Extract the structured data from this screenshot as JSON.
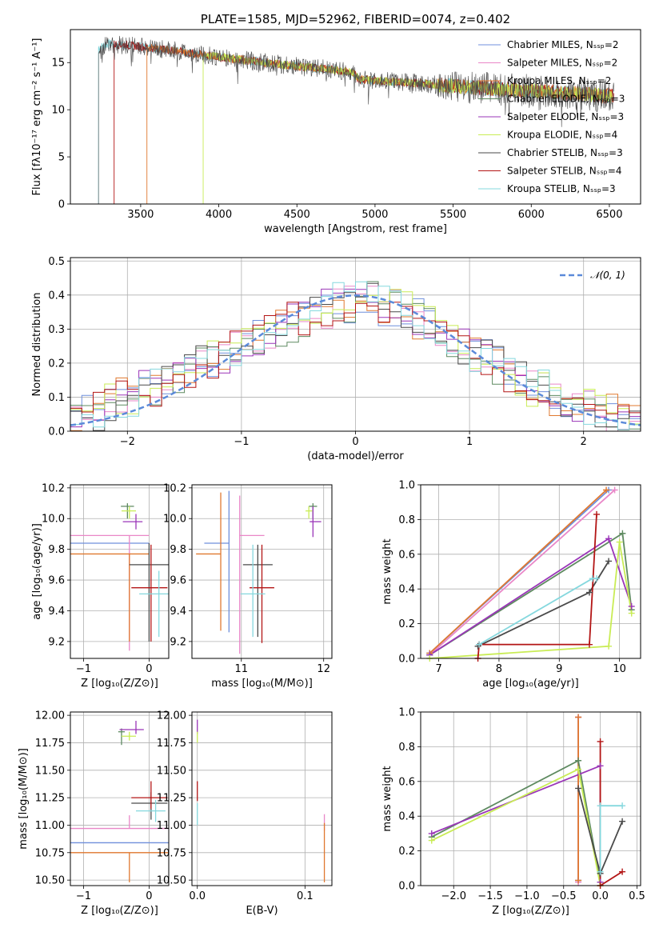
{
  "colors": {
    "Chabrier MILES": "#6f8fdc",
    "Salpeter MILES": "#e987c8",
    "Kroupa MILES": "#e0782f",
    "Chabrier ELODIE": "#5e8a60",
    "Salpeter ELODIE": "#9a35b8",
    "Kroupa ELODIE": "#c9ec55",
    "Chabrier STELIB": "#4a4a4a",
    "Salpeter STELIB": "#b31515",
    "Kroupa STELIB": "#85d8de",
    "normal": "#5b8ad9"
  },
  "chart_data": [
    {
      "id": "spectrum",
      "type": "line",
      "title": "PLATE=1585, MJD=52962, FIBERID=0074, z=0.402",
      "xlabel": "wavelength [Angstrom, rest frame]",
      "ylabel": "Flux [fλ10⁻¹⁷ erg cm⁻² s⁻¹ A⁻¹]",
      "xlim": [
        3050,
        6700
      ],
      "ylim": [
        0,
        18.5
      ],
      "xticks": [
        "3500",
        "4000",
        "4500",
        "5000",
        "5500",
        "6000",
        "6500"
      ],
      "yticks": [
        "0",
        "5",
        "10",
        "15"
      ],
      "legend": [
        "Chabrier MILES, Nₛₛₚ=2",
        "Salpeter MILES, Nₛₛₚ=2",
        "Kroupa MILES, Nₛₛₚ=2",
        "Chabrier ELODIE, Nₛₛₚ=3",
        "Salpeter ELODIE, Nₛₛₚ=3",
        "Kroupa ELODIE, Nₛₛₚ=4",
        "Chabrier STELIB, Nₛₛₚ=3",
        "Salpeter STELIB, Nₛₛₚ=4",
        "Kroupa STELIB, Nₛₛₚ=3"
      ],
      "legend_placement": "upper-right",
      "series": [
        {
          "model": "Kroupa STELIB",
          "start": 3230,
          "end": 6530
        },
        {
          "model": "Salpeter STELIB",
          "start": 3330,
          "end": 6530
        },
        {
          "model": "Kroupa MILES",
          "start": 3540,
          "end": 6520
        },
        {
          "model": "Kroupa ELODIE",
          "start": 3900,
          "end": 6520
        },
        {
          "model": "Chabrier STELIB",
          "start": 3230,
          "end": 6530
        }
      ],
      "continuum": [
        [
          3230,
          16.6
        ],
        [
          3300,
          17.0
        ],
        [
          3500,
          16.7
        ],
        [
          3700,
          16.3
        ],
        [
          3900,
          15.8
        ],
        [
          4100,
          15.4
        ],
        [
          4300,
          15.0
        ],
        [
          4500,
          14.6
        ],
        [
          4700,
          14.3
        ],
        [
          4860,
          13.9
        ],
        [
          4900,
          13.2
        ],
        [
          5100,
          13.0
        ],
        [
          5300,
          12.8
        ],
        [
          5500,
          12.5
        ],
        [
          5700,
          12.3
        ],
        [
          5900,
          12.1
        ],
        [
          6100,
          11.9
        ],
        [
          6300,
          11.7
        ],
        [
          6530,
          11.4
        ]
      ],
      "grid": false
    },
    {
      "id": "residuals",
      "type": "step",
      "xlabel": "(data-model)/error",
      "ylabel": "Normed distribution",
      "xlim": [
        -2.5,
        2.5
      ],
      "ylim": [
        0,
        0.51
      ],
      "xticks": [
        "−2",
        "−1",
        "0",
        "1",
        "2"
      ],
      "yticks": [
        "0.0",
        "0.1",
        "0.2",
        "0.3",
        "0.4",
        "0.5"
      ],
      "legend": [
        "𝒩(0, 1)"
      ],
      "legend_placement": "upper-right",
      "grid": true,
      "bin_start": -2.5,
      "bin_width": 0.1,
      "base": [
        0.06,
        0.05,
        0.06,
        0.09,
        0.1,
        0.1,
        0.12,
        0.13,
        0.15,
        0.17,
        0.18,
        0.2,
        0.21,
        0.23,
        0.24,
        0.26,
        0.27,
        0.29,
        0.3,
        0.32,
        0.33,
        0.34,
        0.36,
        0.38,
        0.37,
        0.39,
        0.38,
        0.37,
        0.36,
        0.35,
        0.33,
        0.31,
        0.29,
        0.27,
        0.25,
        0.23,
        0.21,
        0.19,
        0.17,
        0.15,
        0.13,
        0.12,
        0.1,
        0.09,
        0.08,
        0.07,
        0.06,
        0.05,
        0.04,
        0.03
      ]
    },
    {
      "id": "age-vs-Z",
      "type": "errorbar",
      "xlabel": "Z [log₁₀(Z/Z⊙)]",
      "ylabel": "age  [log₁₀(age/yr)]",
      "xlim": [
        -1.2,
        0.3
      ],
      "ylim": [
        9.09,
        10.22
      ],
      "xticks": [
        "−1",
        "0"
      ],
      "yticks": [
        "9.2",
        "9.4",
        "9.6",
        "9.8",
        "10.0",
        "10.2"
      ],
      "grid": true,
      "points": [
        {
          "model": "Chabrier MILES",
          "x": -0.3,
          "xerr": [
            0.9,
            0.3
          ],
          "y": 9.84,
          "yerr": [
            0,
            0
          ]
        },
        {
          "model": "Salpeter MILES",
          "x": -0.3,
          "xerr": [
            0.9,
            0.3
          ],
          "y": 9.89,
          "yerr": [
            0.75,
            0
          ]
        },
        {
          "model": "Kroupa MILES",
          "x": -0.3,
          "xerr": [
            0.9,
            0.3
          ],
          "y": 9.77,
          "yerr": [
            0.57,
            0
          ]
        },
        {
          "model": "Chabrier ELODIE",
          "x": -0.33,
          "xerr": [
            0.1,
            0.1
          ],
          "y": 10.08,
          "yerr": [
            0.08,
            0.02
          ]
        },
        {
          "model": "Salpeter ELODIE",
          "x": -0.2,
          "xerr": [
            0.2,
            0.1
          ],
          "y": 9.98,
          "yerr": [
            0.05,
            0.05
          ]
        },
        {
          "model": "Kroupa ELODIE",
          "x": -0.3,
          "xerr": [
            0.12,
            0.1
          ],
          "y": 10.05,
          "yerr": [
            0.05,
            0.03
          ]
        },
        {
          "model": "Chabrier STELIB",
          "x": 0.0,
          "xerr": [
            0.3,
            0.3
          ],
          "y": 9.7,
          "yerr": [
            0.5,
            0.14
          ]
        },
        {
          "model": "Salpeter STELIB",
          "x": 0.03,
          "xerr": [
            0.3,
            0.25
          ],
          "y": 9.55,
          "yerr": [
            0.35,
            0.28
          ]
        },
        {
          "model": "Kroupa STELIB",
          "x": 0.15,
          "xerr": [
            0.3,
            0.15
          ],
          "y": 9.51,
          "yerr": [
            0.28,
            0.15
          ]
        }
      ]
    },
    {
      "id": "age-vs-mass",
      "type": "errorbar",
      "xlabel": "mass [log₁₀(M/M⊙)]",
      "ylabel": "",
      "xlim": [
        10.4,
        12.1
      ],
      "ylim": [
        9.09,
        10.22
      ],
      "xticks": [
        "11",
        "12"
      ],
      "yticks": [
        "9.2",
        "9.4",
        "9.6",
        "9.8",
        "10.0",
        "10.2"
      ],
      "grid": true,
      "points": [
        {
          "model": "Chabrier MILES",
          "x": 10.85,
          "xerr": [
            0.3,
            0
          ],
          "y": 9.84,
          "yerr": [
            0.58,
            0.34
          ]
        },
        {
          "model": "Salpeter MILES",
          "x": 10.98,
          "xerr": [
            0,
            0.3
          ],
          "y": 9.89,
          "yerr": [
            0.77,
            0.26
          ]
        },
        {
          "model": "Kroupa MILES",
          "x": 10.75,
          "xerr": [
            0.3,
            0
          ],
          "y": 9.77,
          "yerr": [
            0.5,
            0.4
          ]
        },
        {
          "model": "Chabrier ELODIE",
          "x": 11.87,
          "xerr": [
            0.05,
            0.05
          ],
          "y": 10.08,
          "yerr": [
            0.08,
            0.02
          ]
        },
        {
          "model": "Salpeter ELODIE",
          "x": 11.87,
          "xerr": [
            0.04,
            0.1
          ],
          "y": 9.98,
          "yerr": [
            0.1,
            0.1
          ]
        },
        {
          "model": "Kroupa ELODIE",
          "x": 11.82,
          "xerr": [
            0.04,
            0.04
          ],
          "y": 10.05,
          "yerr": [
            0.05,
            0.03
          ]
        },
        {
          "model": "Chabrier STELIB",
          "x": 11.2,
          "xerr": [
            0.18,
            0.18
          ],
          "y": 9.7,
          "yerr": [
            0.47,
            0.13
          ]
        },
        {
          "model": "Salpeter STELIB",
          "x": 11.25,
          "xerr": [
            0.15,
            0.15
          ],
          "y": 9.55,
          "yerr": [
            0.36,
            0.28
          ]
        },
        {
          "model": "Kroupa STELIB",
          "x": 11.14,
          "xerr": [
            0.15,
            0.15
          ],
          "y": 9.51,
          "yerr": [
            0.28,
            0.32
          ]
        }
      ]
    },
    {
      "id": "massweight-vs-age",
      "type": "line",
      "xlabel": "age  [log₁₀(age/yr)]",
      "ylabel": "mass weight",
      "xlim": [
        6.7,
        10.35
      ],
      "ylim": [
        0,
        1.0
      ],
      "xticks": [
        "7",
        "8",
        "9",
        "10"
      ],
      "yticks": [
        "0.0",
        "0.2",
        "0.4",
        "0.6",
        "0.8",
        "1.0"
      ],
      "grid": true,
      "series": [
        {
          "model": "Chabrier MILES",
          "x": [
            6.85,
            9.82
          ],
          "y": [
            0.03,
            0.97
          ]
        },
        {
          "model": "Salpeter MILES",
          "x": [
            6.85,
            9.92
          ],
          "y": [
            0.02,
            0.97
          ]
        },
        {
          "model": "Kroupa MILES",
          "x": [
            6.85,
            9.78
          ],
          "y": [
            0.03,
            0.97
          ]
        },
        {
          "model": "Chabrier ELODIE",
          "x": [
            6.85,
            10.05,
            10.2
          ],
          "y": [
            0.02,
            0.72,
            0.28
          ]
        },
        {
          "model": "Salpeter ELODIE",
          "x": [
            6.85,
            9.82,
            10.2
          ],
          "y": [
            0.02,
            0.69,
            0.3
          ]
        },
        {
          "model": "Kroupa ELODIE",
          "x": [
            6.85,
            9.82,
            10.0,
            10.2
          ],
          "y": [
            0.0,
            0.07,
            0.67,
            0.26
          ]
        },
        {
          "model": "Chabrier STELIB",
          "x": [
            7.65,
            9.5,
            9.82
          ],
          "y": [
            0.07,
            0.38,
            0.56
          ]
        },
        {
          "model": "Salpeter STELIB",
          "x": [
            7.65,
            7.67,
            9.5,
            9.62
          ],
          "y": [
            0.0,
            0.08,
            0.08,
            0.83
          ]
        },
        {
          "model": "Kroupa STELIB",
          "x": [
            7.67,
            9.55,
            9.62
          ],
          "y": [
            0.08,
            0.46,
            0.46
          ]
        }
      ]
    },
    {
      "id": "mass-vs-Z",
      "type": "errorbar",
      "xlabel": "Z [log₁₀(Z/Z⊙)]",
      "ylabel": "mass [log₁₀(M/M⊙)]",
      "xlim": [
        -1.2,
        0.3
      ],
      "ylim": [
        10.45,
        12.03
      ],
      "xticks": [
        "−1",
        "0"
      ],
      "yticks": [
        "10.50",
        "10.75",
        "11.00",
        "11.25",
        "11.50",
        "11.75",
        "12.00"
      ],
      "grid": true,
      "points": [
        {
          "model": "Chabrier MILES",
          "x": -0.3,
          "xerr": [
            0.9,
            0.6
          ],
          "y": 10.84,
          "yerr": [
            0,
            0
          ]
        },
        {
          "model": "Salpeter MILES",
          "x": -0.3,
          "xerr": [
            0.9,
            0.6
          ],
          "y": 10.97,
          "yerr": [
            0,
            0.12
          ]
        },
        {
          "model": "Kroupa MILES",
          "x": -0.3,
          "xerr": [
            0.9,
            0.6
          ],
          "y": 10.75,
          "yerr": [
            0.27,
            0
          ]
        },
        {
          "model": "Chabrier ELODIE",
          "x": -0.42,
          "xerr": [
            0.05,
            0.05
          ],
          "y": 11.85,
          "yerr": [
            0.12,
            0.03
          ]
        },
        {
          "model": "Salpeter ELODIE",
          "x": -0.2,
          "xerr": [
            0.25,
            0.12
          ],
          "y": 11.87,
          "yerr": [
            0.04,
            0.08
          ]
        },
        {
          "model": "Kroupa ELODIE",
          "x": -0.3,
          "xerr": [
            0.12,
            0.1
          ],
          "y": 11.81,
          "yerr": [
            0.04,
            0.04
          ]
        },
        {
          "model": "Chabrier STELIB",
          "x": 0.03,
          "xerr": [
            0.3,
            0.25
          ],
          "y": 11.2,
          "yerr": [
            0.15,
            0.1
          ]
        },
        {
          "model": "Salpeter STELIB",
          "x": 0.03,
          "xerr": [
            0.3,
            0.25
          ],
          "y": 11.25,
          "yerr": [
            0.1,
            0.15
          ]
        },
        {
          "model": "Kroupa STELIB",
          "x": 0.1,
          "xerr": [
            0.3,
            0.15
          ],
          "y": 11.13,
          "yerr": [
            0.1,
            0.1
          ]
        }
      ]
    },
    {
      "id": "mass-vs-EBV",
      "type": "errorbar",
      "xlabel": "E(B-V)",
      "ylabel": "",
      "xlim": [
        -0.005,
        0.125
      ],
      "ylim": [
        10.45,
        12.03
      ],
      "xticks": [
        "0.0",
        "0.1"
      ],
      "yticks": [
        "10.50",
        "10.75",
        "11.00",
        "11.25",
        "11.50",
        "11.75",
        "12.00"
      ],
      "grid": true,
      "points": [
        {
          "model": "Salpeter ELODIE",
          "x": 0.0,
          "xerr": [
            0,
            0
          ],
          "y": 11.88,
          "yerr": [
            0.05,
            0.08
          ]
        },
        {
          "model": "Kroupa ELODIE",
          "x": 0.0,
          "xerr": [
            0,
            0
          ],
          "y": 11.8,
          "yerr": [
            0.05,
            0.05
          ]
        },
        {
          "model": "Salpeter STELIB",
          "x": 0.0,
          "xerr": [
            0,
            0
          ],
          "y": 11.3,
          "yerr": [
            0.08,
            0.1
          ]
        },
        {
          "model": "Kroupa STELIB",
          "x": 0.0,
          "xerr": [
            0,
            0
          ],
          "y": 11.1,
          "yerr": [
            0.1,
            0.1
          ]
        },
        {
          "model": "Salpeter MILES",
          "x": 0.118,
          "xerr": [
            0,
            0
          ],
          "y": 11.0,
          "yerr": [
            0.05,
            0.1
          ]
        },
        {
          "model": "Kroupa MILES",
          "x": 0.118,
          "xerr": [
            0,
            0
          ],
          "y": 10.75,
          "yerr": [
            0.27,
            0.27
          ]
        }
      ]
    },
    {
      "id": "massweight-vs-Z",
      "type": "line",
      "xlabel": "Z [log₁₀(Z/Z⊙)]",
      "ylabel": "mass weight",
      "xlim": [
        -2.45,
        0.55
      ],
      "ylim": [
        0,
        1.0
      ],
      "xticks": [
        "−2.0",
        "−1.5",
        "−1.0",
        "−0.5",
        "0.0",
        "0.5"
      ],
      "yticks": [
        "0.0",
        "0.2",
        "0.4",
        "0.6",
        "0.8",
        "1.0"
      ],
      "grid": true,
      "series": [
        {
          "model": "Chabrier MILES",
          "x": [
            -0.3,
            -0.3
          ],
          "y": [
            0.97,
            0.03
          ]
        },
        {
          "model": "Salpeter MILES",
          "x": [
            -0.3,
            -0.3
          ],
          "y": [
            0.97,
            0.02
          ]
        },
        {
          "model": "Kroupa MILES",
          "x": [
            -0.3,
            -0.3
          ],
          "y": [
            0.97,
            0.03
          ]
        },
        {
          "model": "Chabrier ELODIE",
          "x": [
            -2.3,
            -0.3,
            0.0
          ],
          "y": [
            0.28,
            0.72,
            0.02
          ]
        },
        {
          "model": "Salpeter ELODIE",
          "x": [
            -2.3,
            0.0,
            0.0
          ],
          "y": [
            0.3,
            0.69,
            0.02
          ]
        },
        {
          "model": "Kroupa ELODIE",
          "x": [
            -2.3,
            -0.3,
            0.0
          ],
          "y": [
            0.26,
            0.67,
            0.0
          ]
        },
        {
          "model": "Chabrier STELIB",
          "x": [
            -0.3,
            0.0,
            0.3
          ],
          "y": [
            0.56,
            0.07,
            0.37
          ]
        },
        {
          "model": "Salpeter STELIB",
          "x": [
            0.0,
            0.0,
            0.3
          ],
          "y": [
            0.83,
            0.0,
            0.08
          ]
        },
        {
          "model": "Kroupa STELIB",
          "x": [
            0.0,
            0.0,
            0.3
          ],
          "y": [
            0.08,
            0.46,
            0.46
          ]
        }
      ]
    }
  ]
}
